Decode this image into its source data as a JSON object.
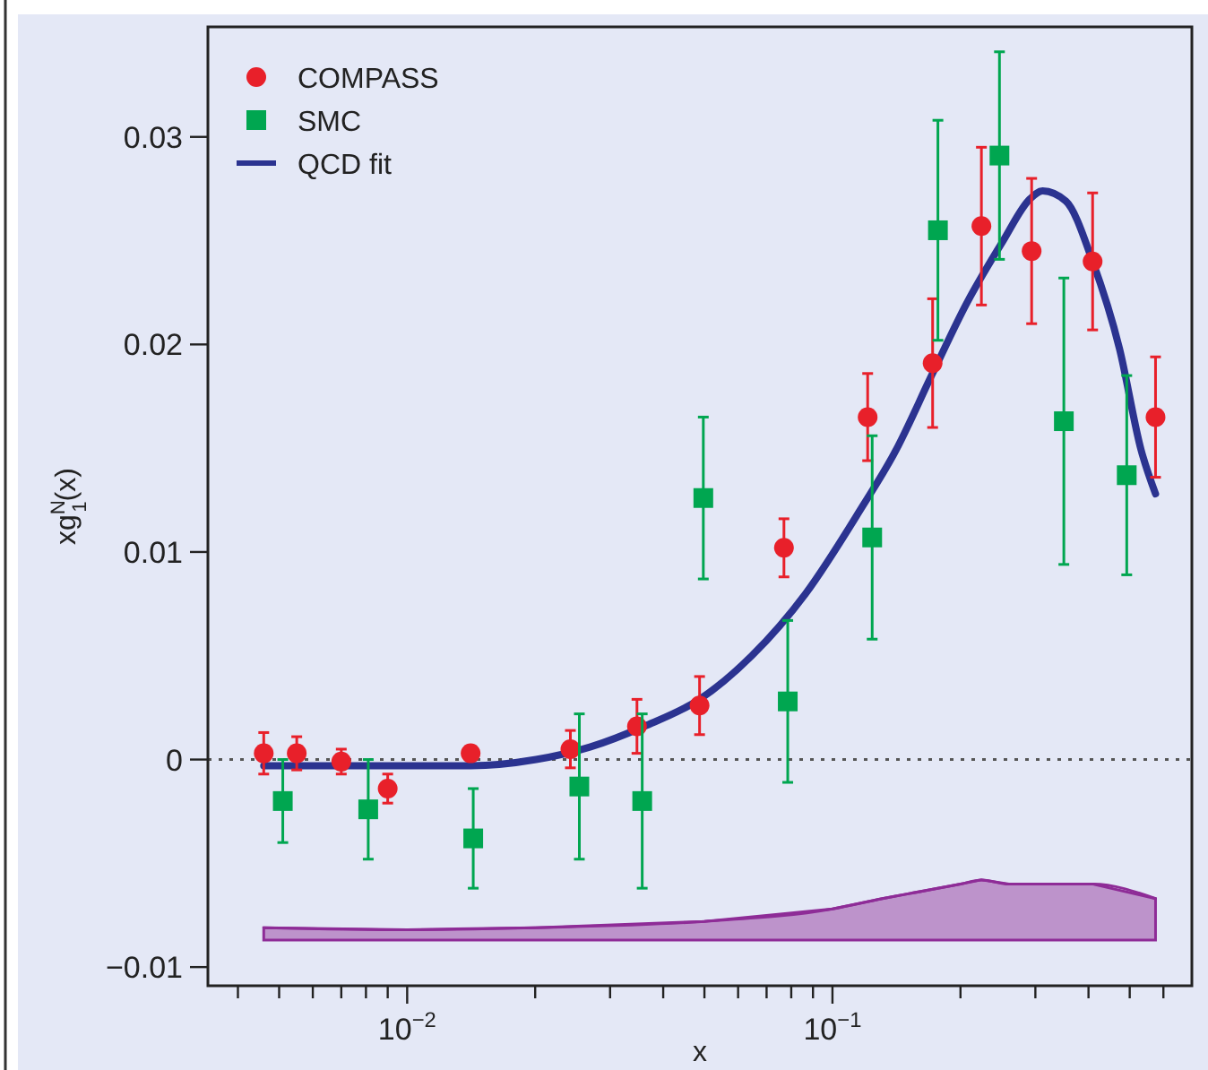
{
  "chart_data": {
    "type": "scatter",
    "xlabel": "x",
    "ylabel": "xg$^{N}$$_{1}$(x)",
    "log": "x",
    "grid": false,
    "legend": "top left",
    "xlim": [
      0.0034,
      0.7
    ],
    "xticks": [
      {
        "value": 0.004,
        "label": null
      },
      {
        "value": 0.005,
        "label": null
      },
      {
        "value": 0.006,
        "label": null
      },
      {
        "value": 0.007,
        "label": null
      },
      {
        "value": 0.008,
        "label": null
      },
      {
        "value": 0.009,
        "label": null
      },
      {
        "value": 0.01,
        "label": "10$^{−2}$"
      },
      {
        "value": 0.02,
        "label": null
      },
      {
        "value": 0.03,
        "label": null
      },
      {
        "value": 0.04,
        "label": null
      },
      {
        "value": 0.05,
        "label": null
      },
      {
        "value": 0.06,
        "label": null
      },
      {
        "value": 0.07,
        "label": null
      },
      {
        "value": 0.08,
        "label": null
      },
      {
        "value": 0.09,
        "label": null
      },
      {
        "value": 0.1,
        "label": "10$^{−1}$"
      },
      {
        "value": 0.2,
        "label": null
      },
      {
        "value": 0.3,
        "label": null
      },
      {
        "value": 0.4,
        "label": null
      },
      {
        "value": 0.5,
        "label": null
      },
      {
        "value": 0.6,
        "label": null
      }
    ],
    "ylim": [
      -0.0109,
      0.0353
    ],
    "yticks": [
      {
        "value": -0.01,
        "label": "−0.01"
      },
      0,
      0.01,
      0.02,
      0.03
    ],
    "ref_lines": [
      {
        "axis": "y",
        "value": 0,
        "color": "#555555",
        "line_style": "dotted"
      }
    ],
    "series": [
      {
        "type": "line",
        "marker": "none",
        "line_style": "solid",
        "color": "#8e2c97",
        "x": [
          0.0046,
          0.01,
          0.02,
          0.05,
          0.1,
          0.131,
          0.2,
          0.224,
          0.26,
          0.41,
          0.575
        ],
        "values": [
          -0.0081,
          -0.0082,
          -0.0081,
          -0.0078,
          -0.0072,
          -0.0067,
          -0.006,
          -0.0058,
          -0.006,
          -0.006,
          -0.0067
        ],
        "upper": [
          -0.0081,
          -0.0082,
          -0.0081,
          -0.0078,
          -0.0072,
          -0.0067,
          -0.006,
          -0.0058,
          -0.006,
          -0.006,
          -0.0067
        ],
        "lower": [
          -0.0087,
          -0.0087,
          -0.0087,
          -0.0087,
          -0.0087,
          -0.0087,
          -0.0087,
          -0.0087,
          -0.0087,
          -0.0087,
          -0.0087
        ]
      },
      {
        "name": "COMPASS",
        "marker": "circle",
        "color": "#e8202a",
        "x": [
          0.0046,
          0.0055,
          0.007,
          0.009,
          0.0141,
          0.0242,
          0.0347,
          0.0487,
          0.0769,
          0.121,
          0.172,
          0.224,
          0.294,
          0.409,
          0.575
        ],
        "values": [
          0.0003,
          0.0003,
          -0.0001,
          -0.0014,
          0.0003,
          0.0005,
          0.0016,
          0.0026,
          0.0102,
          0.0165,
          0.0191,
          0.0257,
          0.0245,
          0.024,
          0.0165
        ],
        "errors": [
          0.001,
          0.0008,
          0.0006,
          0.0007,
          0.0003,
          0.0009,
          0.0013,
          0.0014,
          0.0014,
          0.0021,
          0.0031,
          0.0038,
          0.0035,
          0.0033,
          0.0029
        ]
      },
      {
        "name": "SMC",
        "marker": "square",
        "color": "#00a650",
        "x": [
          0.0051,
          0.0081,
          0.0143,
          0.0254,
          0.0357,
          0.0497,
          0.0785,
          0.124,
          0.177,
          0.247,
          0.35,
          0.492
        ],
        "values": [
          -0.002,
          -0.0024,
          -0.0038,
          -0.0013,
          -0.002,
          0.0126,
          0.0028,
          0.0107,
          0.0255,
          0.0291,
          0.0163,
          0.0137
        ],
        "errors": [
          0.002,
          0.0024,
          0.0024,
          0.0035,
          0.0042,
          0.0039,
          0.0039,
          0.0049,
          0.0053,
          0.005,
          0.0069,
          0.0048
        ]
      },
      {
        "name": "QCD fit",
        "type": "line",
        "marker": "none",
        "line_style": "solid",
        "color": "#2b3390",
        "x": [
          0.0046,
          0.0076,
          0.0141,
          0.0201,
          0.0269,
          0.0361,
          0.0487,
          0.0646,
          0.0865,
          0.116,
          0.141,
          0.171,
          0.207,
          0.252,
          0.291,
          0.312,
          0.354,
          0.409,
          0.473,
          0.532,
          0.575
        ],
        "values": [
          -0.0003,
          -0.0003,
          -0.0003,
          0.0,
          0.0006,
          0.0016,
          0.0029,
          0.005,
          0.008,
          0.012,
          0.0149,
          0.0185,
          0.022,
          0.025,
          0.027,
          0.0274,
          0.0269,
          0.024,
          0.0198,
          0.0149,
          0.0128
        ]
      }
    ]
  }
}
